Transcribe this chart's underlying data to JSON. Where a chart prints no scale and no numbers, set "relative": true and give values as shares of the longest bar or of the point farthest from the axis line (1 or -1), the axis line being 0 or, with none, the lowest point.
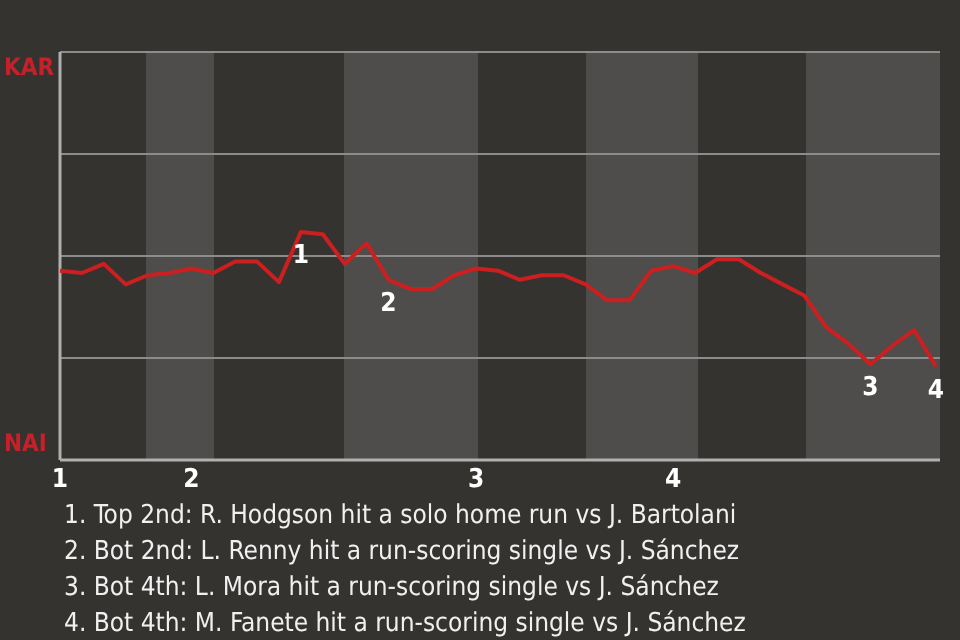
{
  "chart_data": {
    "type": "line",
    "categories": [
      "1",
      null,
      null,
      null,
      null,
      null,
      "2",
      null,
      null,
      null,
      null,
      null,
      null,
      null,
      null,
      null,
      null,
      null,
      null,
      "3",
      null,
      null,
      null,
      null,
      null,
      null,
      null,
      null,
      "4",
      null,
      null,
      null,
      null,
      null,
      null,
      null,
      null,
      null,
      null,
      null,
      null
    ],
    "series": [
      {
        "color": "#cc1f1f",
        "values": [
          0.83,
          0.82,
          0.86,
          0.77,
          0.81,
          0.82,
          0.84,
          0.82,
          0.87,
          0.87,
          0.78,
          1,
          0.99,
          0.86,
          0.95,
          0.79,
          0.75,
          0.75,
          0.81,
          0.84,
          0.83,
          0.79,
          0.81,
          0.81,
          0.77,
          0.7,
          0.7,
          0.83,
          0.85,
          0.82,
          0.88,
          0.88,
          0.82,
          0.77,
          0.72,
          0.58,
          0.51,
          0.42,
          0.5,
          0.57,
          0.41
        ]
      }
    ],
    "relative": true,
    "ref_lines": [
      {
        "axis": "y",
        "value": 0.447,
        "color": "#8c8c8c"
      },
      {
        "axis": "y",
        "value": 0.894,
        "color": "#8c8c8c"
      },
      {
        "axis": "y",
        "value": 1.342,
        "color": "#8c8c8c"
      }
    ],
    "marker": "none",
    "annotations": [
      "KAR",
      "NAI",
      {
        "text": "1",
        "y": 1
      },
      {
        "text": "2",
        "y": 0.79
      },
      {
        "text": "3",
        "y": 0.42
      },
      {
        "text": "4",
        "y": 0.41
      },
      "1. Top 2nd: R. Hodgson hit a solo home run vs J. Bartolani",
      "2. Bot 2nd: L. Renny hit a run-scoring single vs J. Sánchez",
      "3. Bot 4th: L. Mora hit a run-scoring single vs J. Sánchez",
      "4. Bot 4th: M. Fanete hit a run-scoring single vs J. Sánchez"
    ]
  }
}
